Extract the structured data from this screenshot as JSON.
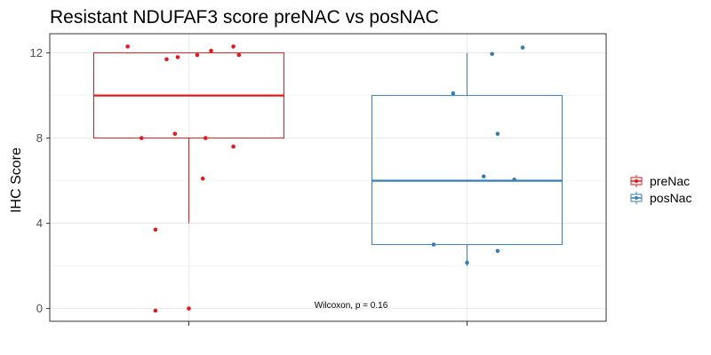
{
  "chart_data": {
    "type": "boxplot",
    "title": "Resistant NDUFAF3 score preNAC vs posNAC",
    "xlabel": "",
    "ylabel": "IHC Score",
    "ylim": [
      -0.6,
      12.9
    ],
    "yticks": [
      0,
      4,
      8,
      12
    ],
    "grid": true,
    "legend_position": "right",
    "annotation": "Wilcoxon, p = 0.16",
    "series": [
      {
        "name": "preNac",
        "color": "#e41a1c",
        "box": {
          "lower_whisker": 4,
          "q1": 8,
          "median": 10,
          "q3": 12,
          "upper_whisker": 12
        },
        "points": [
          {
            "jitter": -0.22,
            "y": 12.3
          },
          {
            "jitter": -0.08,
            "y": 11.7
          },
          {
            "jitter": -0.04,
            "y": 11.8
          },
          {
            "jitter": 0.03,
            "y": 11.9
          },
          {
            "jitter": 0.08,
            "y": 12.1
          },
          {
            "jitter": 0.16,
            "y": 12.3
          },
          {
            "jitter": 0.18,
            "y": 11.9
          },
          {
            "jitter": -0.17,
            "y": 8.0
          },
          {
            "jitter": -0.05,
            "y": 8.2
          },
          {
            "jitter": 0.06,
            "y": 8.0
          },
          {
            "jitter": 0.16,
            "y": 7.6
          },
          {
            "jitter": 0.05,
            "y": 6.1
          },
          {
            "jitter": -0.12,
            "y": 3.7
          },
          {
            "jitter": -0.12,
            "y": -0.1
          },
          {
            "jitter": 0.0,
            "y": 0.0
          }
        ]
      },
      {
        "name": "posNac",
        "color": "#377eb8",
        "box": {
          "lower_whisker": 2,
          "q1": 3,
          "median": 6,
          "q3": 10,
          "upper_whisker": 12
        },
        "points": [
          {
            "jitter": 0.09,
            "y": 11.95
          },
          {
            "jitter": 0.2,
            "y": 12.25
          },
          {
            "jitter": -0.05,
            "y": 10.1
          },
          {
            "jitter": 0.11,
            "y": 8.2
          },
          {
            "jitter": 0.06,
            "y": 6.2
          },
          {
            "jitter": 0.17,
            "y": 6.05
          },
          {
            "jitter": -0.12,
            "y": 3.0
          },
          {
            "jitter": 0.11,
            "y": 2.7
          },
          {
            "jitter": 0.0,
            "y": 2.15
          }
        ]
      }
    ]
  }
}
